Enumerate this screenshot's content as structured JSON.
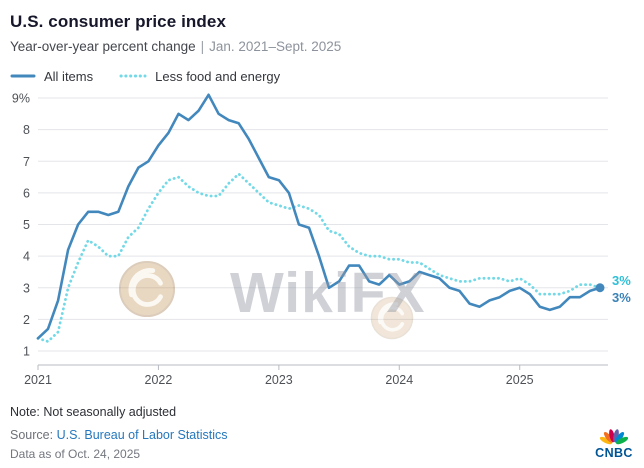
{
  "header": {
    "title": "U.S. consumer price index",
    "subtitle_metric": "Year-over-year percent change",
    "subtitle_separator": "|",
    "subtitle_range": "Jan. 2021–Sept. 2025"
  },
  "watermark": {
    "text": "WikiFX"
  },
  "footer": {
    "note": "Note: Not seasonally adjusted",
    "source_prefix": "Source:",
    "source_link": "U.S. Bureau of Labor Statistics",
    "as_of": "Data as of Oct. 24, 2025",
    "logo_text": "CNBC",
    "logo_color": "#005594",
    "peacock_colors": [
      "#fcb711",
      "#f37021",
      "#cc004c",
      "#6460aa",
      "#0089d0",
      "#0db14b"
    ]
  },
  "chart_data": {
    "type": "line",
    "title": "U.S. consumer price index",
    "subtitle": "Year-over-year percent change, Jan. 2021–Sept. 2025",
    "x_start": "2021-01",
    "x_end": "2025-09",
    "frequency": "monthly",
    "ylabel": "percent",
    "ylim": [
      1,
      9
    ],
    "grid": true,
    "legend_position": "top",
    "yticks": [
      {
        "value": 1,
        "label": "1"
      },
      {
        "value": 2,
        "label": "2"
      },
      {
        "value": 3,
        "label": "3"
      },
      {
        "value": 4,
        "label": "4"
      },
      {
        "value": 5,
        "label": "5"
      },
      {
        "value": 6,
        "label": "6"
      },
      {
        "value": 7,
        "label": "7"
      },
      {
        "value": 8,
        "label": "8"
      },
      {
        "value": 9,
        "label": "9%"
      }
    ],
    "xticks": [
      {
        "index": 0,
        "label": "2021"
      },
      {
        "index": 12,
        "label": "2022"
      },
      {
        "index": 24,
        "label": "2023"
      },
      {
        "index": 36,
        "label": "2024"
      },
      {
        "index": 48,
        "label": "2025"
      }
    ],
    "series": [
      {
        "name": "All items",
        "style": "solid",
        "color": "#4288bd",
        "stroke_width": 2.6,
        "end_marker": true,
        "end_label": "3%",
        "end_label_color": "#3b82b6",
        "end_label_dy": 14,
        "values": [
          1.4,
          1.7,
          2.6,
          4.2,
          5.0,
          5.4,
          5.4,
          5.3,
          5.4,
          6.2,
          6.8,
          7.0,
          7.5,
          7.9,
          8.5,
          8.3,
          8.6,
          9.1,
          8.5,
          8.3,
          8.2,
          7.7,
          7.1,
          6.5,
          6.4,
          6.0,
          5.0,
          4.9,
          4.0,
          3.0,
          3.2,
          3.7,
          3.7,
          3.2,
          3.1,
          3.4,
          3.1,
          3.2,
          3.5,
          3.4,
          3.3,
          3.0,
          2.9,
          2.5,
          2.4,
          2.6,
          2.7,
          2.9,
          3.0,
          2.8,
          2.4,
          2.3,
          2.4,
          2.7,
          2.7,
          2.9,
          3.0
        ]
      },
      {
        "name": "Less food and energy",
        "style": "dotted",
        "color": "#74d9e6",
        "stroke_width": 2.8,
        "end_marker": false,
        "end_label": "3%",
        "end_label_color": "#2fbfd6",
        "end_label_dy": -3,
        "values": [
          1.4,
          1.3,
          1.6,
          3.0,
          3.8,
          4.5,
          4.3,
          4.0,
          4.0,
          4.6,
          4.9,
          5.5,
          6.0,
          6.4,
          6.5,
          6.2,
          6.0,
          5.9,
          5.9,
          6.3,
          6.6,
          6.3,
          6.0,
          5.7,
          5.6,
          5.5,
          5.6,
          5.5,
          5.3,
          4.8,
          4.7,
          4.3,
          4.1,
          4.0,
          4.0,
          3.9,
          3.9,
          3.8,
          3.8,
          3.6,
          3.4,
          3.3,
          3.2,
          3.2,
          3.3,
          3.3,
          3.3,
          3.2,
          3.3,
          3.1,
          2.8,
          2.8,
          2.8,
          2.9,
          3.1,
          3.1,
          3.0
        ]
      }
    ]
  }
}
